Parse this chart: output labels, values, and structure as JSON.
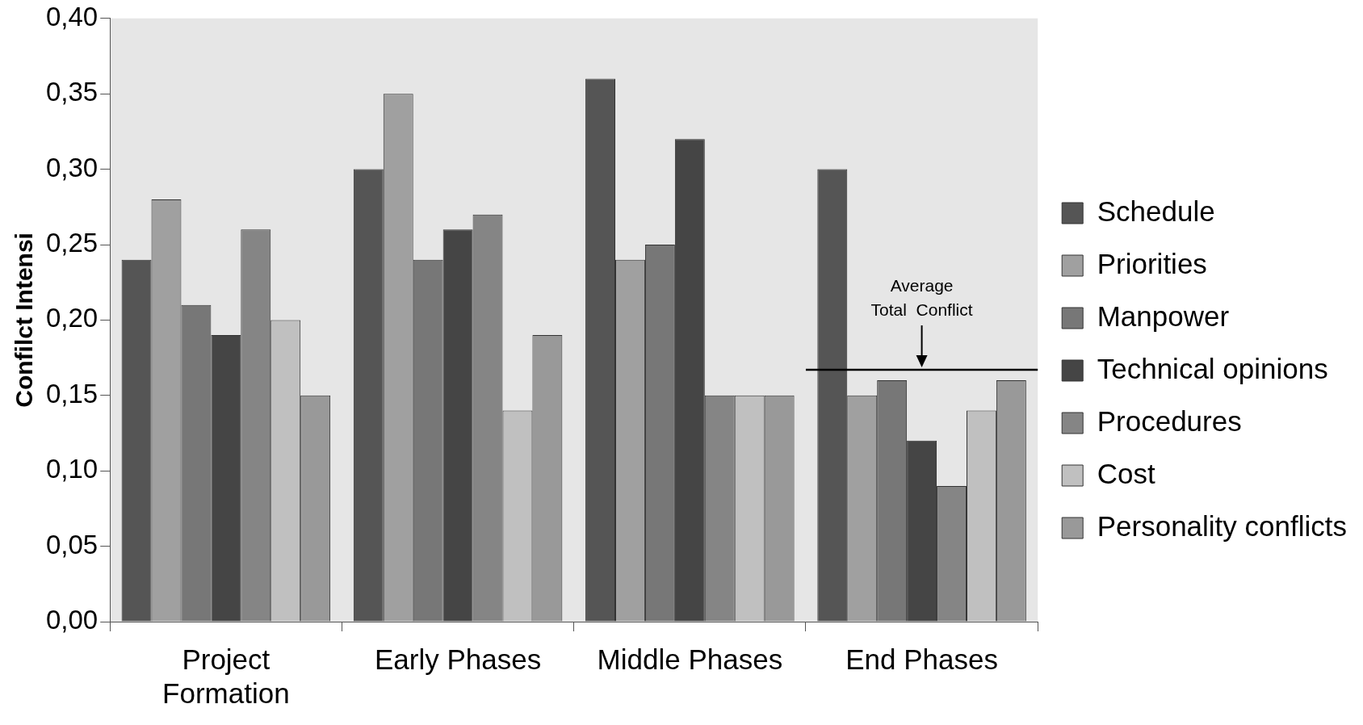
{
  "chart_data": {
    "type": "bar",
    "ylabel": "Confilct Intensi",
    "categories": [
      "Project Formation",
      "Early Phases",
      "Middle Phases",
      "End Phases"
    ],
    "series": [
      {
        "name": "Schedule",
        "color": "#555555",
        "values": [
          0.24,
          0.3,
          0.36,
          0.3
        ]
      },
      {
        "name": "Priorities",
        "color": "#a0a0a0",
        "values": [
          0.28,
          0.35,
          0.24,
          0.15
        ]
      },
      {
        "name": "Manpower",
        "color": "#777777",
        "values": [
          0.21,
          0.24,
          0.25,
          0.16
        ]
      },
      {
        "name": "Technical opinions",
        "color": "#454545",
        "values": [
          0.19,
          0.26,
          0.32,
          0.12
        ]
      },
      {
        "name": "Procedures",
        "color": "#858585",
        "values": [
          0.26,
          0.27,
          0.15,
          0.09
        ]
      },
      {
        "name": "Cost",
        "color": "#c0c0c0",
        "values": [
          0.2,
          0.14,
          0.15,
          0.14
        ]
      },
      {
        "name": "Personality conflicts",
        "color": "#999999",
        "values": [
          0.15,
          0.19,
          0.15,
          0.16
        ]
      }
    ],
    "ylim": [
      0,
      0.4
    ],
    "yticks": [
      {
        "value": 0,
        "label": "0,00"
      },
      {
        "value": 0.05,
        "label": "0,05"
      },
      {
        "value": 0.1,
        "label": "0,10"
      },
      {
        "value": 0.15,
        "label": "0,15"
      },
      {
        "value": 0.2,
        "label": "0,20"
      },
      {
        "value": 0.25,
        "label": "0,25"
      },
      {
        "value": 0.3,
        "label": "0,30"
      },
      {
        "value": 0.35,
        "label": "0,35"
      },
      {
        "value": 0.4,
        "label": "0,40"
      }
    ],
    "ref_lines": [
      {
        "axis": "y",
        "value": 0.167,
        "label": "Average Total Conflict",
        "color": "#000000"
      }
    ],
    "grid": false,
    "legend": "right"
  }
}
